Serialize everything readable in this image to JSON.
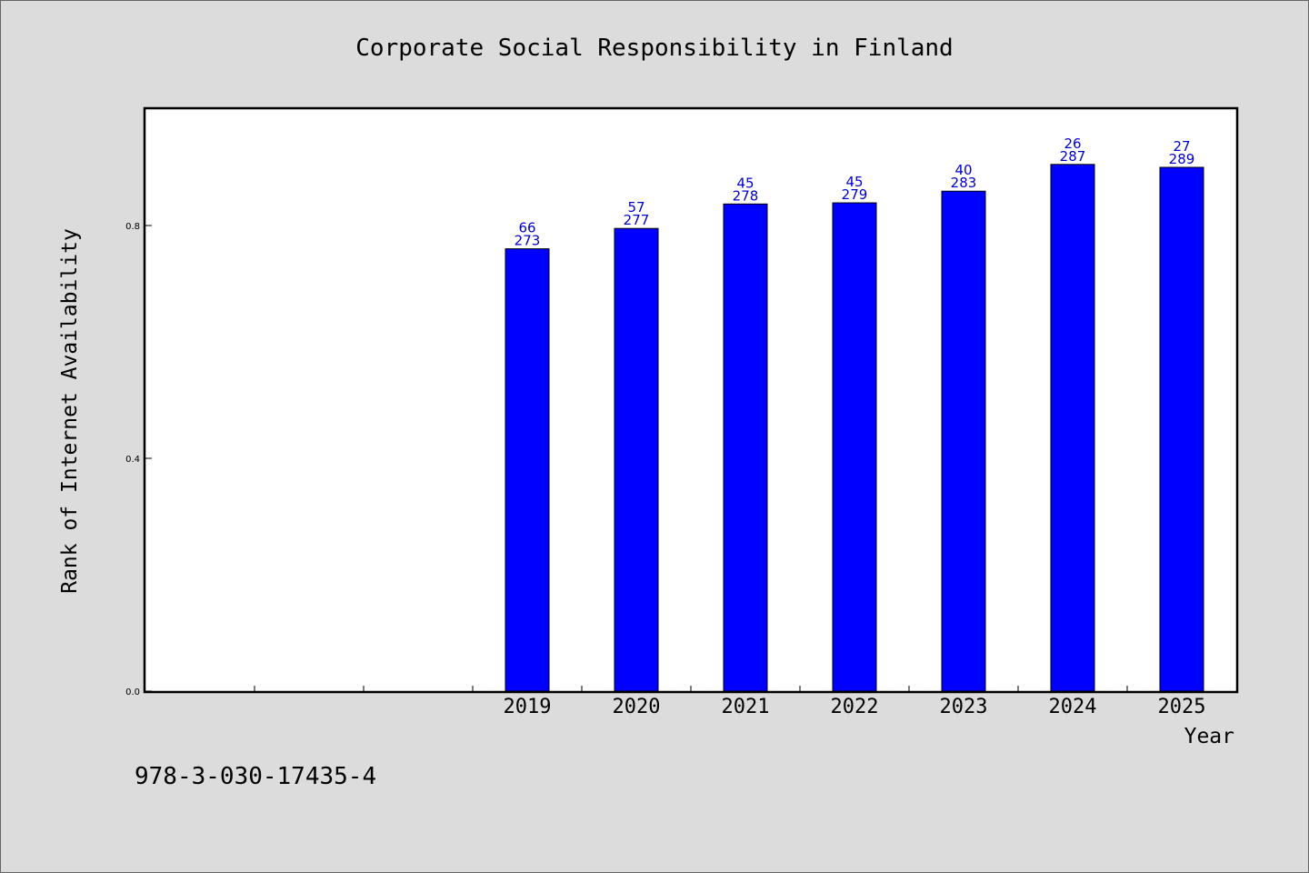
{
  "footer": {
    "isbn": "978-3-030-17435-4"
  },
  "colors": {
    "bar": "#0000ff",
    "label": "#0000cc",
    "background": "#dcdcdc",
    "plot_background": "#ffffff"
  },
  "chart_data": {
    "type": "bar",
    "title": "Corporate Social Responsibility in Finland",
    "xlabel": "Year",
    "ylabel": "Rank of Internet Availability",
    "categories": [
      "",
      "",
      "",
      "2019",
      "2020",
      "2021",
      "2022",
      "2023",
      "2024",
      "2025"
    ],
    "values": [
      null,
      null,
      null,
      0.76,
      0.795,
      0.837,
      0.839,
      0.859,
      0.905,
      0.9
    ],
    "data_labels": [
      null,
      null,
      null,
      [
        "66",
        "273"
      ],
      [
        "57",
        "277"
      ],
      [
        "45",
        "278"
      ],
      [
        "45",
        "279"
      ],
      [
        "40",
        "283"
      ],
      [
        "26",
        "287"
      ],
      [
        "27",
        "289"
      ]
    ],
    "yticks": [
      "0.0",
      "0.4",
      "0.8"
    ],
    "ylim": [
      0,
      1.0
    ],
    "grid": false,
    "legend": "none"
  }
}
